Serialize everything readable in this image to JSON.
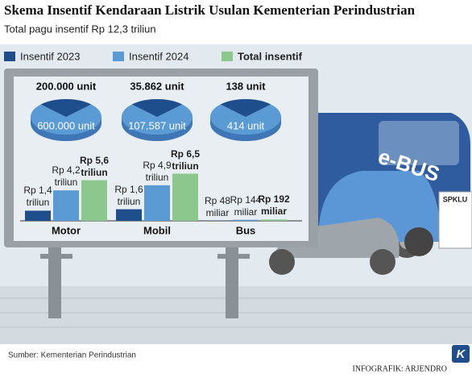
{
  "chart_data": {
    "type": "bar",
    "title": "Skema Insentif Kendaraan Listrik Usulan Kementerian Perindustrian",
    "subtitle": "Total pagu insentif Rp 12,3 triliun",
    "categories": [
      "Motor",
      "Mobil",
      "Bus"
    ],
    "series": [
      {
        "name": "Insentif 2023",
        "color": "#1f4e8c",
        "values": [
          1.4,
          1.6,
          0.048
        ],
        "value_labels": [
          "Rp 1,4 triliun",
          "Rp 1,6 triliun",
          "Rp 48 miliar"
        ]
      },
      {
        "name": "Insentif 2024",
        "color": "#5b9bd5",
        "values": [
          4.2,
          4.9,
          0.144
        ],
        "value_labels": [
          "Rp 4,2 triliun",
          "Rp 4,9 triliun",
          "Rp 144 miliar"
        ]
      },
      {
        "name": "Total insentif",
        "color": "#8cc78d",
        "values": [
          5.6,
          6.5,
          0.192
        ],
        "value_labels": [
          "Rp 5,6 triliun",
          "Rp 6,5 triliun",
          "Rp 192 miliar"
        ]
      }
    ],
    "units": [
      {
        "values": [
          200000,
          35862,
          138
        ],
        "value_labels": [
          "200.000 unit",
          "35.862 unit",
          "138 unit"
        ]
      },
      {
        "values": [
          600000,
          107587,
          414
        ],
        "value_labels": [
          "600.000 unit",
          "107.587 unit",
          "414 unit"
        ]
      }
    ],
    "annotations": [
      "e-BUS",
      "SPKLU"
    ],
    "source": "Sumber: Kementerian Perindustrian",
    "credit": "INFOGRAFIK: ARJENDRO",
    "logo": "K"
  }
}
